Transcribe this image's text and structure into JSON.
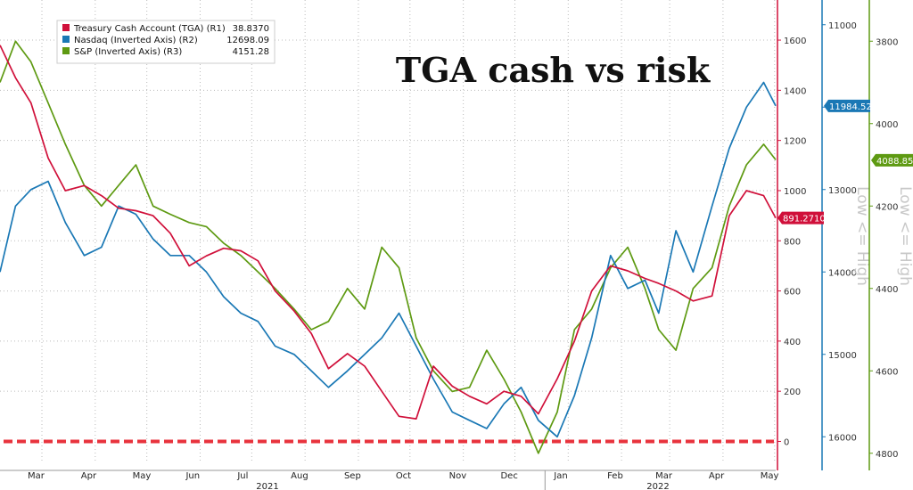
{
  "chart_data": {
    "type": "line",
    "title": "TGA cash vs risk",
    "x_axis": {
      "months": [
        "Mar",
        "Apr",
        "May",
        "Jun",
        "Jul",
        "Aug",
        "Sep",
        "Oct",
        "Nov",
        "Dec",
        "Jan",
        "Feb",
        "Mar",
        "Apr",
        "May"
      ],
      "years": [
        "2021",
        "2022"
      ]
    },
    "axes": {
      "r1": {
        "ticks": [
          0,
          200,
          400,
          600,
          800,
          1000,
          1200,
          1400,
          1600
        ],
        "ylim": [
          -80,
          1760
        ],
        "color": "#d0103a"
      },
      "r2": {
        "ticks": [
          11000,
          12000,
          13000,
          14000,
          15000,
          16000
        ],
        "ylim": [
          16300,
          10700
        ],
        "inverted": true,
        "label": "Low <= High",
        "color": "#1a78b5"
      },
      "r3": {
        "ticks": [
          3800,
          4000,
          4200,
          4400,
          4600,
          4800
        ],
        "ylim": [
          4820,
          3700
        ],
        "inverted": true,
        "label": "Low <= High",
        "color": "#5e9a12"
      }
    },
    "grid": true,
    "legend_position": "top-left",
    "zero_line": {
      "value": 0,
      "color": "#e8333d"
    },
    "series": [
      {
        "name": "Treasury Cash Account (TGA) (R1)",
        "axis": "r1",
        "color": "#d0103a",
        "last_value": "38.8370",
        "tag": "891.2710",
        "x": [
          "2021-02-15",
          "2021-02-24",
          "2021-03-05",
          "2021-03-15",
          "2021-03-25",
          "2021-04-05",
          "2021-04-15",
          "2021-04-25",
          "2021-05-05",
          "2021-05-15",
          "2021-05-25",
          "2021-06-05",
          "2021-06-15",
          "2021-06-25",
          "2021-07-05",
          "2021-07-15",
          "2021-07-25",
          "2021-08-05",
          "2021-08-15",
          "2021-08-25",
          "2021-09-05",
          "2021-09-15",
          "2021-09-25",
          "2021-10-05",
          "2021-10-15",
          "2021-10-25",
          "2021-11-05",
          "2021-11-15",
          "2021-11-25",
          "2021-12-05",
          "2021-12-15",
          "2021-12-25",
          "2022-01-05",
          "2022-01-15",
          "2022-01-25",
          "2022-02-05",
          "2022-02-15",
          "2022-02-25",
          "2022-03-05",
          "2022-03-15",
          "2022-03-25",
          "2022-04-05",
          "2022-04-15",
          "2022-04-25",
          "2022-05-05",
          "2022-05-12"
        ],
        "values": [
          1580,
          1450,
          1350,
          1130,
          1000,
          1020,
          980,
          930,
          920,
          900,
          830,
          700,
          740,
          770,
          760,
          720,
          600,
          520,
          430,
          290,
          350,
          300,
          200,
          100,
          90,
          300,
          220,
          180,
          150,
          200,
          180,
          110,
          250,
          400,
          600,
          700,
          680,
          650,
          630,
          600,
          560,
          580,
          900,
          1000,
          980,
          891
        ]
      },
      {
        "name": "Nasdaq (Inverted Axis) (R2)",
        "axis": "r2",
        "color": "#1a78b5",
        "last_value": "12698.09",
        "tag": "11984.52",
        "x": [
          "2021-02-15",
          "2021-02-24",
          "2021-03-05",
          "2021-03-15",
          "2021-03-25",
          "2021-04-05",
          "2021-04-15",
          "2021-04-25",
          "2021-05-05",
          "2021-05-15",
          "2021-05-25",
          "2021-06-05",
          "2021-06-15",
          "2021-06-25",
          "2021-07-05",
          "2021-07-15",
          "2021-07-25",
          "2021-08-05",
          "2021-08-15",
          "2021-08-25",
          "2021-09-05",
          "2021-09-15",
          "2021-09-25",
          "2021-10-05",
          "2021-10-15",
          "2021-10-25",
          "2021-11-05",
          "2021-11-15",
          "2021-11-25",
          "2021-12-05",
          "2021-12-15",
          "2021-12-25",
          "2022-01-05",
          "2022-01-15",
          "2022-01-25",
          "2022-02-05",
          "2022-02-15",
          "2022-02-25",
          "2022-03-05",
          "2022-03-15",
          "2022-03-25",
          "2022-04-05",
          "2022-04-15",
          "2022-04-25",
          "2022-05-05",
          "2022-05-12"
        ],
        "values": [
          14000,
          13200,
          13000,
          12900,
          13400,
          13800,
          13700,
          13200,
          13300,
          13600,
          13800,
          13800,
          14000,
          14300,
          14500,
          14600,
          14900,
          15000,
          15200,
          15400,
          15200,
          15000,
          14800,
          14500,
          14900,
          15300,
          15700,
          15800,
          15900,
          15600,
          15400,
          15800,
          16000,
          15500,
          14800,
          13800,
          14200,
          14100,
          14500,
          13500,
          14000,
          13200,
          12500,
          12000,
          11700,
          11984
        ]
      },
      {
        "name": "S&P (Inverted Axis) (R3)",
        "axis": "r3",
        "color": "#5e9a12",
        "last_value": "4151.28",
        "tag": "4088.85",
        "x": [
          "2021-02-15",
          "2021-02-24",
          "2021-03-05",
          "2021-03-15",
          "2021-03-25",
          "2021-04-05",
          "2021-04-15",
          "2021-04-25",
          "2021-05-05",
          "2021-05-15",
          "2021-05-25",
          "2021-06-05",
          "2021-06-15",
          "2021-06-25",
          "2021-07-05",
          "2021-07-15",
          "2021-07-25",
          "2021-08-05",
          "2021-08-15",
          "2021-08-25",
          "2021-09-05",
          "2021-09-15",
          "2021-09-25",
          "2021-10-05",
          "2021-10-15",
          "2021-10-25",
          "2021-11-05",
          "2021-11-15",
          "2021-11-25",
          "2021-12-05",
          "2021-12-15",
          "2021-12-25",
          "2022-01-05",
          "2022-01-15",
          "2022-01-25",
          "2022-02-05",
          "2022-02-15",
          "2022-02-25",
          "2022-03-05",
          "2022-03-15",
          "2022-03-25",
          "2022-04-05",
          "2022-04-15",
          "2022-04-25",
          "2022-05-05",
          "2022-05-12"
        ],
        "values": [
          3900,
          3800,
          3850,
          3950,
          4050,
          4150,
          4200,
          4150,
          4100,
          4200,
          4220,
          4240,
          4250,
          4290,
          4320,
          4360,
          4400,
          4450,
          4500,
          4480,
          4400,
          4450,
          4300,
          4350,
          4520,
          4600,
          4650,
          4640,
          4550,
          4620,
          4700,
          4800,
          4700,
          4500,
          4450,
          4350,
          4300,
          4400,
          4500,
          4550,
          4400,
          4350,
          4200,
          4100,
          4050,
          4088
        ]
      }
    ]
  }
}
